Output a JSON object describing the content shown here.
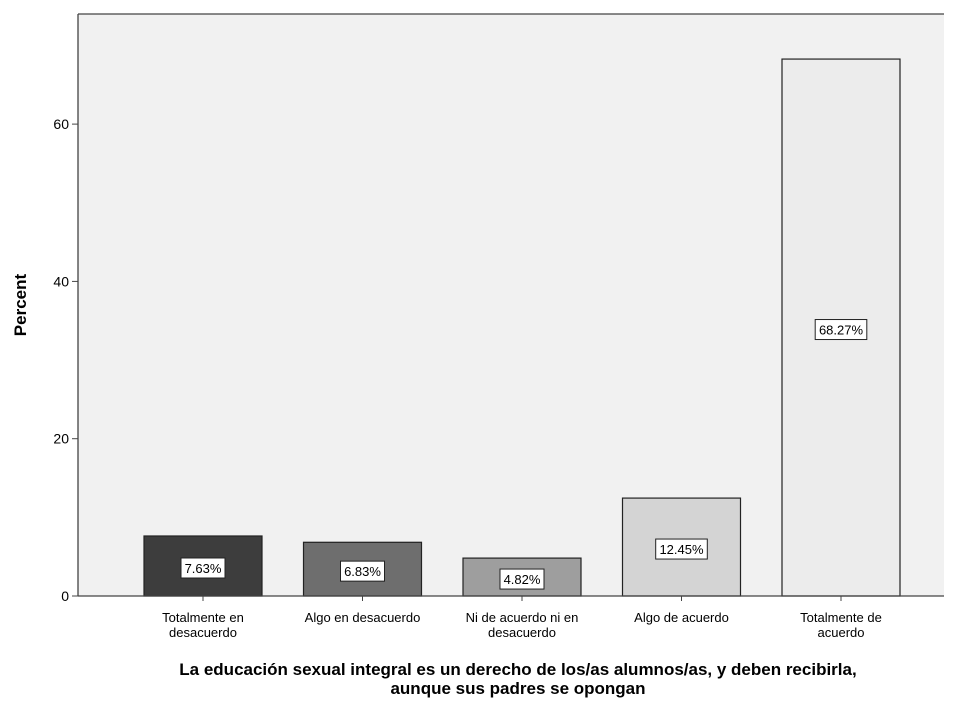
{
  "chart_data": {
    "type": "bar",
    "categories": [
      [
        "Totalmente en",
        "desacuerdo"
      ],
      [
        "Algo en desacuerdo"
      ],
      [
        "Ni de acuerdo ni en",
        "desacuerdo"
      ],
      [
        "Algo de acuerdo"
      ],
      [
        "Totalmente de",
        "acuerdo"
      ]
    ],
    "values": [
      7.63,
      6.83,
      4.82,
      12.45,
      68.27
    ],
    "data_labels": [
      "7.63%",
      "6.83%",
      "4.82%",
      "12.45%",
      "68.27%"
    ],
    "bar_colors": [
      "#3d3d3d",
      "#6e6e6e",
      "#9e9e9e",
      "#d4d4d4",
      "#ececec"
    ],
    "xlabel": [
      "La educación sexual integral es un derecho de los/as alumnos/as, y deben recibirla,",
      "aunque sus padres se opongan"
    ],
    "ylabel": "Percent",
    "ylim": [
      0,
      74
    ],
    "yticks": [
      0,
      20,
      40,
      60
    ],
    "plot_background": "#f1f1f1",
    "grid": false,
    "legend": "none"
  }
}
